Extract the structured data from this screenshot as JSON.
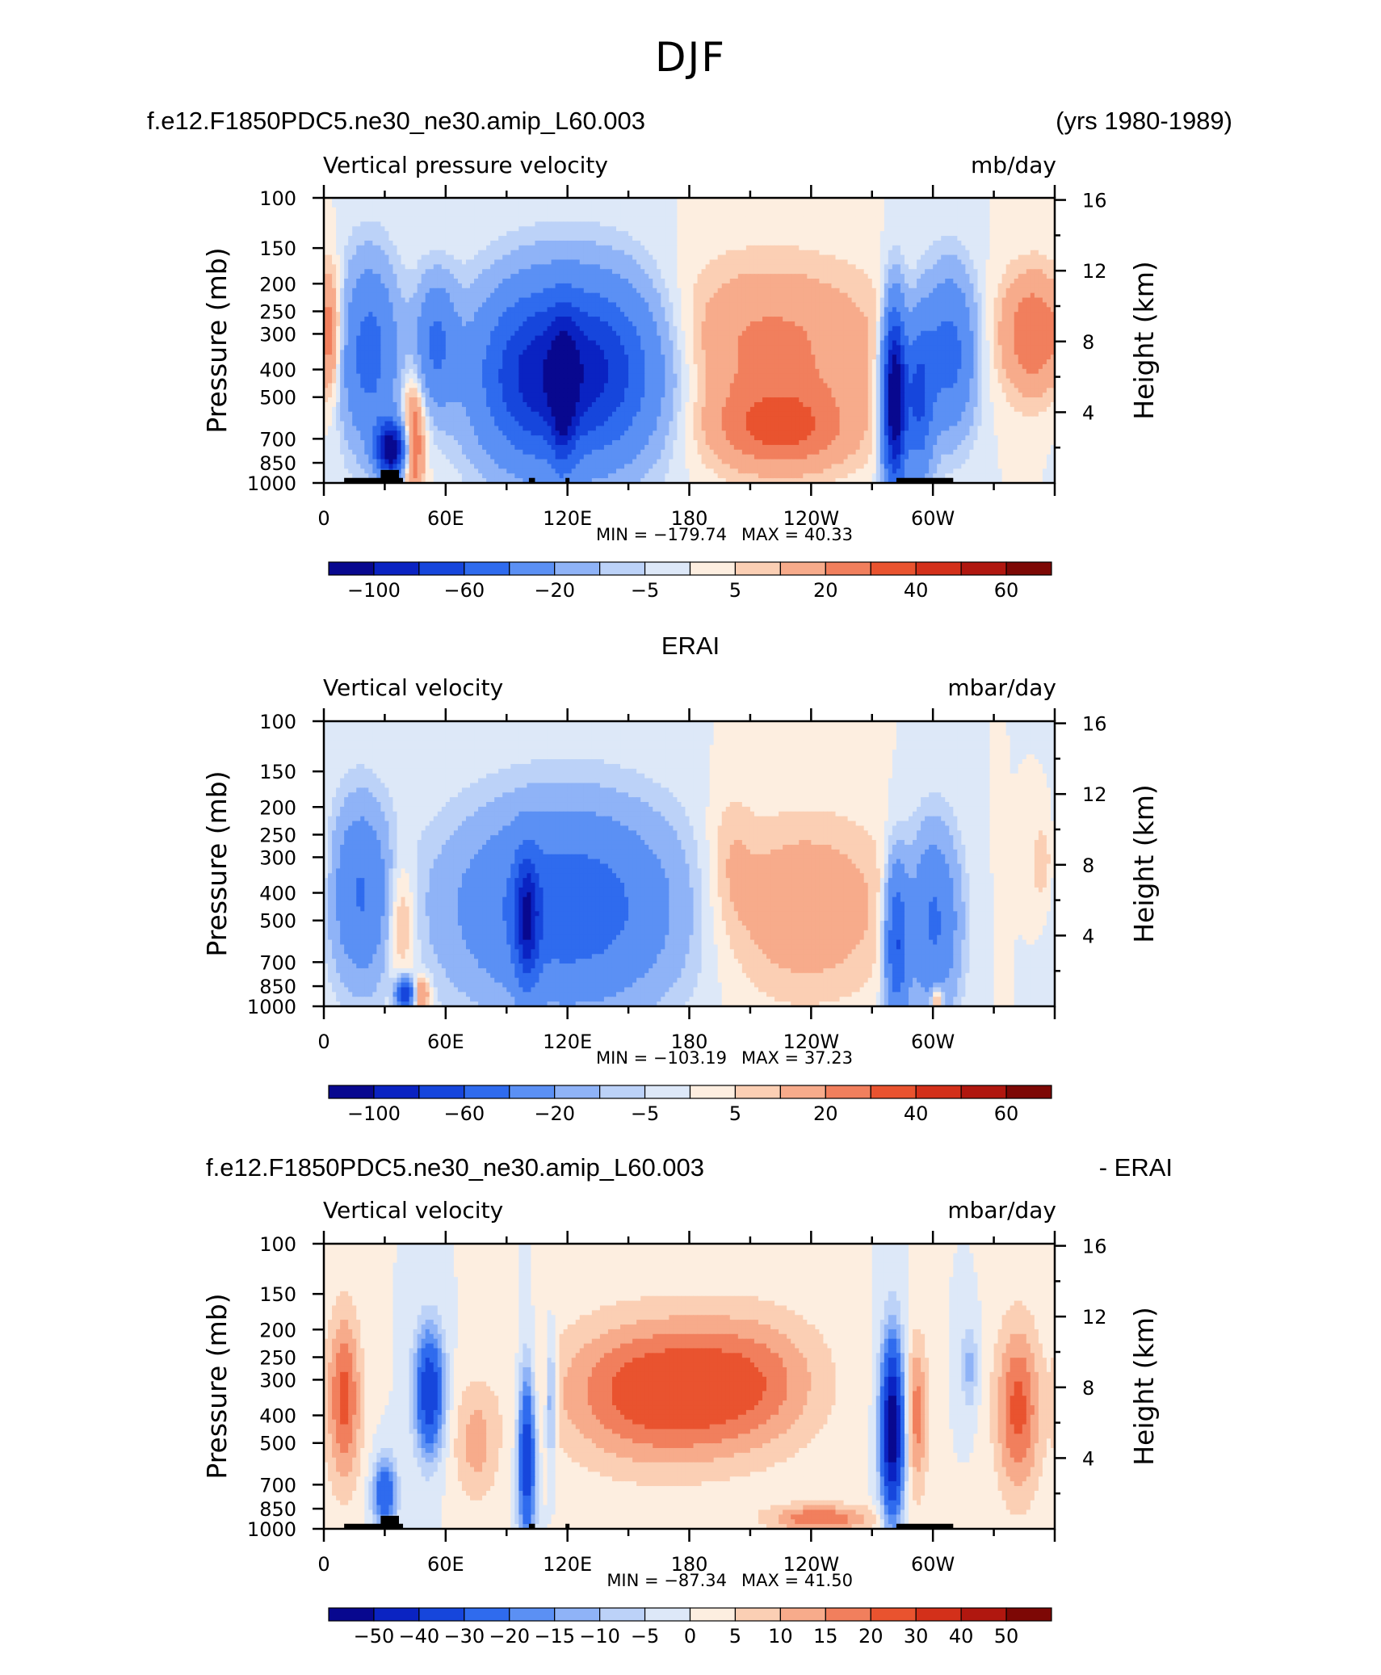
{
  "page_title": "DJF",
  "colors": {
    "cmap": [
      "#08088f",
      "#0a23c2",
      "#1646dc",
      "#2f6bee",
      "#5b90f4",
      "#8fb3f7",
      "#bcd2f8",
      "#dde8f8",
      "#fdeee0",
      "#fbcfb4",
      "#f7ab8b",
      "#f17f5d",
      "#e9532f",
      "#d3301a",
      "#b0170f",
      "#7d0805"
    ]
  },
  "panels": [
    {
      "id": "model",
      "left_header": "f.e12.F1850PDC5.ne30_ne30.amip_L60.003",
      "right_header": "(yrs 1980-1989)",
      "title_left": "Vertical pressure velocity",
      "title_right": "mb/day",
      "min_label": "MIN = −179.74",
      "max_label": "MAX =   40.33",
      "colorbar_labels": [
        "−100",
        "−60",
        "−20",
        "−5",
        "5",
        "20",
        "40",
        "60"
      ]
    },
    {
      "id": "obs",
      "center_header": "ERAI",
      "title_left": "Vertical velocity",
      "title_right": "mbar/day",
      "min_label": "MIN = −103.19",
      "max_label": "MAX =   37.23",
      "colorbar_labels": [
        "−100",
        "−60",
        "−20",
        "−5",
        "5",
        "20",
        "40",
        "60"
      ]
    },
    {
      "id": "diff",
      "left_header": "f.e12.F1850PDC5.ne30_ne30.amip_L60.003",
      "right_header": "- ERAI",
      "title_left": "Vertical velocity",
      "title_right": "mbar/day",
      "min_label": "MIN = −87.34",
      "max_label": "MAX =   41.50",
      "colorbar_labels": [
        "−50",
        "−40",
        "−30",
        "−20",
        "−15",
        "−10",
        "−5",
        "0",
        "5",
        "10",
        "15",
        "20",
        "30",
        "40",
        "50"
      ]
    }
  ],
  "chart_data": [
    {
      "type": "heatmap",
      "title": "Vertical pressure velocity",
      "units": "mb/day",
      "xlabel": "",
      "ylabel": "Pressure (mb)",
      "y2label": "Height (km)",
      "x_ticks": [
        "0",
        "60E",
        "120E",
        "180",
        "120W",
        "60W"
      ],
      "x_tick_lon": [
        0,
        60,
        120,
        180,
        240,
        300
      ],
      "xlim": [
        0,
        360
      ],
      "y_ticks": [
        "100",
        "150",
        "200",
        "250",
        "300",
        "400",
        "500",
        "700",
        "850",
        "1000"
      ],
      "y_tick_p": [
        100,
        150,
        200,
        250,
        300,
        400,
        500,
        700,
        850,
        1000
      ],
      "ylim": [
        1000,
        100
      ],
      "y_scale": "log",
      "y2_ticks": [
        "16",
        "12",
        "8",
        "4"
      ],
      "y2_tick_km": [
        16,
        12,
        8,
        4
      ],
      "color_levels": [
        -100,
        -80,
        -60,
        -40,
        -20,
        -10,
        -5,
        0,
        5,
        10,
        20,
        30,
        40,
        50,
        60
      ],
      "min": -179.74,
      "max": 40.33,
      "features": [
        {
          "lon": 22,
          "p": 350,
          "value": -50,
          "wlon": 10,
          "wlogp": 0.5
        },
        {
          "lon": 33,
          "p": 760,
          "value": -120,
          "wlon": 5,
          "wlogp": 0.15
        },
        {
          "lon": 44,
          "p": 700,
          "value": 35,
          "wlon": 4,
          "wlogp": 0.35
        },
        {
          "lon": 55,
          "p": 320,
          "value": -40,
          "wlon": 7,
          "wlogp": 0.35
        },
        {
          "lon": 105,
          "p": 420,
          "value": -80,
          "wlon": 22,
          "wlogp": 0.5
        },
        {
          "lon": 140,
          "p": 400,
          "value": -60,
          "wlon": 22,
          "wlogp": 0.5
        },
        {
          "lon": 118,
          "p": 500,
          "value": -50,
          "wlon": 4,
          "wlogp": 0.4
        },
        {
          "lon": 220,
          "p": 320,
          "value": 22,
          "wlon": 40,
          "wlogp": 0.45
        },
        {
          "lon": 225,
          "p": 650,
          "value": 30,
          "wlon": 25,
          "wlogp": 0.25
        },
        {
          "lon": 281,
          "p": 500,
          "value": -130,
          "wlon": 4,
          "wlogp": 0.5
        },
        {
          "lon": 293,
          "p": 500,
          "value": -60,
          "wlon": 5,
          "wlogp": 0.45
        },
        {
          "lon": 308,
          "p": 350,
          "value": -50,
          "wlon": 9,
          "wlogp": 0.45
        },
        {
          "lon": 350,
          "p": 300,
          "value": 30,
          "wlon": 12,
          "wlogp": 0.35
        },
        {
          "lon": 4,
          "p": 300,
          "value": 15,
          "wlon": 3,
          "wlogp": 0.4
        }
      ],
      "topography": [
        [
          10,
          39,
          960
        ],
        [
          28,
          37,
          900
        ],
        [
          101,
          104,
          960
        ],
        [
          119,
          121,
          960
        ],
        [
          282,
          310,
          960
        ]
      ]
    },
    {
      "type": "heatmap",
      "title": "Vertical velocity",
      "units": "mbar/day",
      "xlabel": "",
      "ylabel": "Pressure (mb)",
      "y2label": "Height (km)",
      "x_ticks": [
        "0",
        "60E",
        "120E",
        "180",
        "120W",
        "60W"
      ],
      "x_tick_lon": [
        0,
        60,
        120,
        180,
        240,
        300
      ],
      "xlim": [
        0,
        360
      ],
      "y_ticks": [
        "100",
        "150",
        "200",
        "250",
        "300",
        "400",
        "500",
        "700",
        "850",
        "1000"
      ],
      "y_tick_p": [
        100,
        150,
        200,
        250,
        300,
        400,
        500,
        700,
        850,
        1000
      ],
      "ylim": [
        1000,
        100
      ],
      "y_scale": "log",
      "y2_ticks": [
        "16",
        "12",
        "8",
        "4"
      ],
      "y2_tick_km": [
        16,
        12,
        8,
        4
      ],
      "color_levels": [
        -100,
        -80,
        -60,
        -40,
        -20,
        -10,
        -5,
        0,
        5,
        10,
        20,
        30,
        40,
        50,
        60
      ],
      "min": -103.19,
      "max": 37.23,
      "features": [
        {
          "lon": 18,
          "p": 400,
          "value": -40,
          "wlon": 10,
          "wlogp": 0.5
        },
        {
          "lon": 38,
          "p": 500,
          "value": 18,
          "wlon": 5,
          "wlogp": 0.35
        },
        {
          "lon": 40,
          "p": 900,
          "value": -80,
          "wlon": 3,
          "wlogp": 0.08
        },
        {
          "lon": 48,
          "p": 900,
          "value": 25,
          "wlon": 3,
          "wlogp": 0.1
        },
        {
          "lon": 120,
          "p": 450,
          "value": -55,
          "wlon": 38,
          "wlogp": 0.55
        },
        {
          "lon": 100,
          "p": 500,
          "value": -65,
          "wlon": 4,
          "wlogp": 0.35
        },
        {
          "lon": 235,
          "p": 450,
          "value": 18,
          "wlon": 32,
          "wlogp": 0.5
        },
        {
          "lon": 200,
          "p": 300,
          "value": 8,
          "wlon": 8,
          "wlogp": 0.4
        },
        {
          "lon": 282,
          "p": 600,
          "value": -60,
          "wlon": 4,
          "wlogp": 0.45
        },
        {
          "lon": 300,
          "p": 500,
          "value": -45,
          "wlon": 9,
          "wlogp": 0.5
        },
        {
          "lon": 302,
          "p": 950,
          "value": 30,
          "wlon": 2,
          "wlogp": 0.08
        },
        {
          "lon": 355,
          "p": 320,
          "value": 10,
          "wlon": 5,
          "wlogp": 0.3
        }
      ],
      "topography": []
    },
    {
      "type": "heatmap",
      "title": "Vertical velocity",
      "units": "mbar/day",
      "xlabel": "",
      "ylabel": "Pressure (mb)",
      "y2label": "Height (km)",
      "x_ticks": [
        "0",
        "60E",
        "120E",
        "180",
        "120W",
        "60W"
      ],
      "x_tick_lon": [
        0,
        60,
        120,
        180,
        240,
        300
      ],
      "xlim": [
        0,
        360
      ],
      "y_ticks": [
        "100",
        "150",
        "200",
        "250",
        "300",
        "400",
        "500",
        "700",
        "850",
        "1000"
      ],
      "y_tick_p": [
        100,
        150,
        200,
        250,
        300,
        400,
        500,
        700,
        850,
        1000
      ],
      "ylim": [
        1000,
        100
      ],
      "y_scale": "log",
      "y2_ticks": [
        "16",
        "12",
        "8",
        "4"
      ],
      "y2_tick_km": [
        16,
        12,
        8,
        4
      ],
      "color_levels": [
        -50,
        -40,
        -30,
        -20,
        -15,
        -10,
        -5,
        0,
        5,
        10,
        15,
        20,
        30,
        40,
        50
      ],
      "min": -87.34,
      "max": 41.5,
      "features": [
        {
          "lon": 10,
          "p": 350,
          "value": 22,
          "wlon": 6,
          "wlogp": 0.5
        },
        {
          "lon": 30,
          "p": 750,
          "value": -30,
          "wlon": 4,
          "wlogp": 0.2
        },
        {
          "lon": 52,
          "p": 330,
          "value": -40,
          "wlon": 5,
          "wlogp": 0.35
        },
        {
          "lon": 100,
          "p": 550,
          "value": -40,
          "wlon": 3,
          "wlogp": 0.5
        },
        {
          "lon": 112,
          "p": 350,
          "value": -20,
          "wlon": 2,
          "wlogp": 0.35
        },
        {
          "lon": 165,
          "p": 330,
          "value": 25,
          "wlon": 35,
          "wlogp": 0.42
        },
        {
          "lon": 215,
          "p": 300,
          "value": 12,
          "wlon": 25,
          "wlogp": 0.4
        },
        {
          "lon": 280,
          "p": 450,
          "value": -60,
          "wlon": 4,
          "wlogp": 0.5
        },
        {
          "lon": 292,
          "p": 400,
          "value": 18,
          "wlon": 4,
          "wlogp": 0.45
        },
        {
          "lon": 318,
          "p": 270,
          "value": -12,
          "wlon": 3,
          "wlogp": 0.25
        },
        {
          "lon": 342,
          "p": 380,
          "value": 22,
          "wlon": 8,
          "wlogp": 0.5
        },
        {
          "lon": 245,
          "p": 920,
          "value": 20,
          "wlon": 18,
          "wlogp": 0.08
        },
        {
          "lon": 75,
          "p": 500,
          "value": 12,
          "wlon": 8,
          "wlogp": 0.35
        }
      ],
      "topography": [
        [
          10,
          39,
          960
        ],
        [
          28,
          37,
          900
        ],
        [
          101,
          104,
          960
        ],
        [
          119,
          121,
          960
        ],
        [
          282,
          310,
          960
        ]
      ]
    }
  ]
}
